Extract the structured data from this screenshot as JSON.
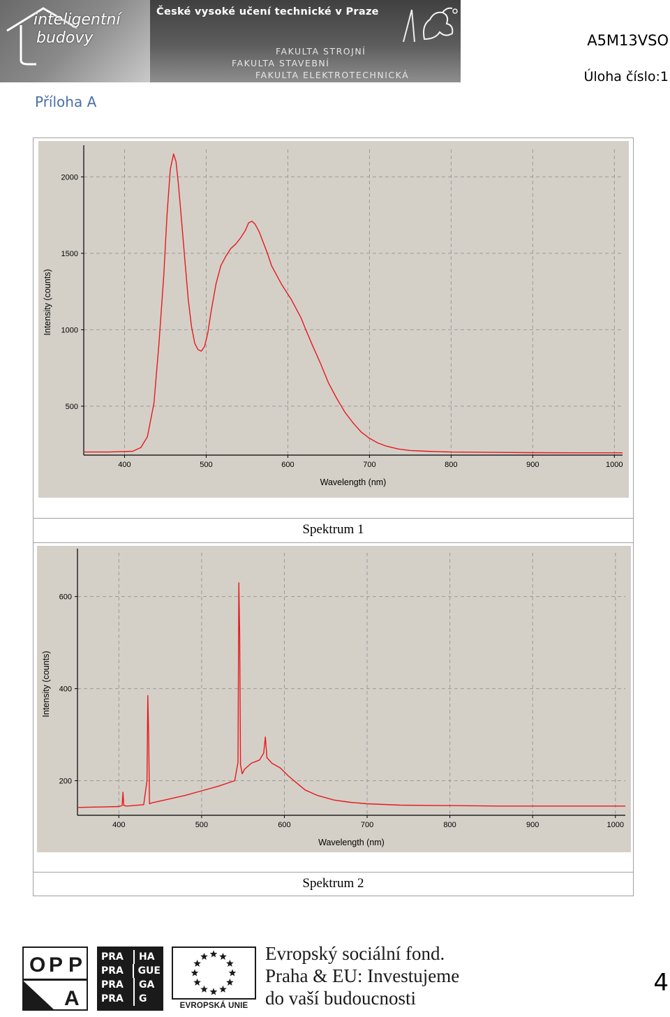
{
  "header": {
    "logo_line1": "inteligentní",
    "logo_line2": "budovy",
    "university": "České vysoké učení technické v Praze",
    "faculty_1": "FAKULTA STROJNÍ",
    "faculty_2": "FAKULTA STAVEBNÍ",
    "faculty_3": "FAKULTA ELEKTROTECHNICKÁ",
    "course_code": "A5M13VSO",
    "task_number": "Úloha číslo:1"
  },
  "appendix_title": "Příloha A",
  "colors": {
    "accent": "#4a6fa8",
    "plot_bg": "#d4d0c8",
    "trace": "#e8181c",
    "grid": "#9a9a9a"
  },
  "chart_data": [
    {
      "type": "line",
      "caption": "Spektrum 1",
      "xlabel": "Wavelength (nm)",
      "ylabel": "Intensity (counts)",
      "xlim": [
        350,
        1010
      ],
      "ylim": [
        180,
        2180
      ],
      "xticks": [
        400,
        500,
        600,
        700,
        800,
        900,
        1000
      ],
      "yticks": [
        500,
        1000,
        1500,
        2000
      ],
      "grid": true,
      "series": [
        {
          "x": [
            350,
            380,
            410,
            420,
            428,
            436,
            442,
            448,
            452,
            456,
            460,
            463,
            466,
            470,
            474,
            478,
            482,
            486,
            490,
            494,
            498,
            502,
            506,
            512,
            518,
            524,
            530,
            536,
            542,
            548,
            552,
            556,
            560,
            565,
            570,
            575,
            580,
            586,
            592,
            598,
            604,
            610,
            616,
            622,
            630,
            640,
            650,
            660,
            670,
            680,
            690,
            700,
            710,
            720,
            735,
            750,
            770,
            800,
            850,
            900,
            950,
            1000,
            1010
          ],
          "y": [
            200,
            200,
            205,
            230,
            300,
            520,
            900,
            1350,
            1750,
            2050,
            2150,
            2100,
            1950,
            1700,
            1450,
            1200,
            1020,
            910,
            870,
            860,
            890,
            980,
            1120,
            1300,
            1420,
            1480,
            1530,
            1560,
            1600,
            1650,
            1700,
            1710,
            1690,
            1640,
            1570,
            1500,
            1420,
            1360,
            1300,
            1250,
            1200,
            1140,
            1080,
            1000,
            900,
            780,
            650,
            550,
            460,
            390,
            330,
            290,
            260,
            240,
            220,
            210,
            205,
            200,
            198,
            196,
            195,
            195,
            195
          ]
        }
      ]
    },
    {
      "type": "line",
      "caption": "Spektrum 2",
      "xlabel": "Wavelength (nm)",
      "ylabel": "Intensity (counts)",
      "xlim": [
        350,
        1012
      ],
      "ylim": [
        125,
        695
      ],
      "xticks": [
        400,
        500,
        600,
        700,
        800,
        900,
        1000
      ],
      "yticks": [
        200,
        400,
        600
      ],
      "grid": true,
      "series": [
        {
          "x": [
            350,
            380,
            400,
            404,
            405,
            406,
            410,
            430,
            434,
            435,
            436,
            437,
            440,
            460,
            480,
            500,
            520,
            540,
            544,
            545,
            546,
            547,
            549,
            552,
            560,
            570,
            575,
            577,
            579,
            585,
            595,
            605,
            615,
            625,
            640,
            660,
            680,
            700,
            740,
            800,
            860,
            930,
            1000,
            1012
          ],
          "y": [
            142,
            143,
            144,
            146,
            175,
            146,
            145,
            148,
            200,
            385,
            300,
            150,
            152,
            160,
            168,
            178,
            188,
            200,
            240,
            630,
            520,
            235,
            215,
            225,
            238,
            245,
            260,
            295,
            250,
            238,
            228,
            210,
            195,
            180,
            168,
            158,
            153,
            150,
            147,
            146,
            145,
            145,
            145,
            145
          ]
        }
      ]
    }
  ],
  "footer": {
    "opp_letters": [
      "O",
      "P",
      "P",
      "A"
    ],
    "praha_rows": [
      [
        "PRA",
        "HA"
      ],
      [
        "PRA",
        "GUE"
      ],
      [
        "PRA",
        "GA"
      ],
      [
        "PRA",
        "G"
      ]
    ],
    "eu_label": "EVROPSKÁ UNIE",
    "text_line1": "Evropský sociální fond.",
    "text_line2": "Praha & EU: Investujeme",
    "text_line3": "do vaší budoucnosti",
    "page_number": "4"
  }
}
